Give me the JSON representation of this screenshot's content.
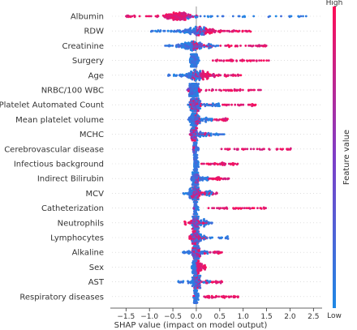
{
  "chart_data": {
    "type": "scatter",
    "subtype": "beeswarm",
    "xlabel": "SHAP value (impact on model output)",
    "xlim": [
      -1.8,
      2.65
    ],
    "x_ticks": [
      -1.5,
      -1.0,
      -0.5,
      0.0,
      0.5,
      1.0,
      1.5,
      2.0,
      2.5
    ],
    "x_tick_labels": [
      "−1.5",
      "−1.0",
      "−0.5",
      "0.0",
      "0.5",
      "1.0",
      "1.5",
      "2.0",
      "2.5"
    ],
    "zero_line": true,
    "colorbar": {
      "title": "Feature value",
      "high_label": "High",
      "low_label": "Low",
      "low_color": "#1e88e5",
      "high_color": "#ff0d57",
      "position": "right"
    },
    "features": [
      {
        "name": "Albumin",
        "low_range": [
          -0.2,
          2.4
        ],
        "high_range": [
          -1.5,
          0.2
        ],
        "density_center": -0.4,
        "spread": 0.35
      },
      {
        "name": "RDW",
        "low_range": [
          -1.0,
          0.2
        ],
        "high_range": [
          0.0,
          1.2
        ],
        "density_center": 0.05,
        "spread": 0.45
      },
      {
        "name": "Creatinine",
        "low_range": [
          -0.7,
          0.5
        ],
        "high_range": [
          -0.1,
          1.5
        ],
        "density_center": -0.1,
        "spread": 0.35
      },
      {
        "name": "Surgery",
        "low_range": [
          -0.15,
          0.05
        ],
        "high_range": [
          0.35,
          1.55
        ],
        "density_center": -0.05,
        "spread": 0.08
      },
      {
        "name": "Age",
        "low_range": [
          -0.6,
          0.1
        ],
        "high_range": [
          -0.1,
          0.95
        ],
        "density_center": 0.05,
        "spread": 0.3
      },
      {
        "name": "NRBC/100 WBC",
        "low_range": [
          -0.15,
          0.05
        ],
        "high_range": [
          0.05,
          1.4
        ],
        "density_center": -0.05,
        "spread": 0.12
      },
      {
        "name": "Platelet Automated Count",
        "low_range": [
          -0.1,
          0.5
        ],
        "high_range": [
          -0.1,
          1.3
        ],
        "density_center": -0.03,
        "spread": 0.12
      },
      {
        "name": "Mean platelet volume",
        "low_range": [
          -0.15,
          0.35
        ],
        "high_range": [
          -0.05,
          0.7
        ],
        "density_center": -0.03,
        "spread": 0.1
      },
      {
        "name": "MCHC",
        "low_range": [
          -0.1,
          0.6
        ],
        "high_range": [
          -0.1,
          0.3
        ],
        "density_center": -0.05,
        "spread": 0.07
      },
      {
        "name": "Cerebrovascular disease",
        "low_range": [
          -0.05,
          0.05
        ],
        "high_range": [
          0.5,
          2.05
        ],
        "density_center": -0.03,
        "spread": 0.03
      },
      {
        "name": "Infectious background",
        "low_range": [
          -0.05,
          0.05
        ],
        "high_range": [
          0.1,
          0.9
        ],
        "density_center": -0.02,
        "spread": 0.03
      },
      {
        "name": "Indirect Bilirubin",
        "low_range": [
          -0.1,
          0.25
        ],
        "high_range": [
          -0.05,
          0.7
        ],
        "density_center": -0.02,
        "spread": 0.07
      },
      {
        "name": "MCV",
        "low_range": [
          -0.35,
          0.35
        ],
        "high_range": [
          -0.1,
          0.45
        ],
        "density_center": -0.03,
        "spread": 0.12
      },
      {
        "name": "Catheterization",
        "low_range": [
          -0.05,
          0.05
        ],
        "high_range": [
          0.2,
          1.5
        ],
        "density_center": -0.02,
        "spread": 0.03
      },
      {
        "name": "Neutrophils",
        "low_range": [
          -0.1,
          0.35
        ],
        "high_range": [
          -0.25,
          0.25
        ],
        "density_center": -0.02,
        "spread": 0.08
      },
      {
        "name": "Lymphocytes",
        "low_range": [
          -0.1,
          0.7
        ],
        "high_range": [
          -0.15,
          0.25
        ],
        "density_center": -0.02,
        "spread": 0.08
      },
      {
        "name": "Alkaline",
        "low_range": [
          -0.3,
          0.25
        ],
        "high_range": [
          -0.1,
          0.6
        ],
        "density_center": 0.0,
        "spread": 0.08
      },
      {
        "name": "Sex",
        "low_range": [
          -0.1,
          0.0
        ],
        "high_range": [
          0.0,
          0.2
        ],
        "density_center": 0.0,
        "spread": 0.08
      },
      {
        "name": "AST",
        "low_range": [
          -0.4,
          0.3
        ],
        "high_range": [
          -0.05,
          0.55
        ],
        "density_center": 0.0,
        "spread": 0.08
      },
      {
        "name": "Respiratory diseases",
        "low_range": [
          -0.05,
          0.05
        ],
        "high_range": [
          0.15,
          0.9
        ],
        "density_center": -0.02,
        "spread": 0.03
      }
    ]
  }
}
